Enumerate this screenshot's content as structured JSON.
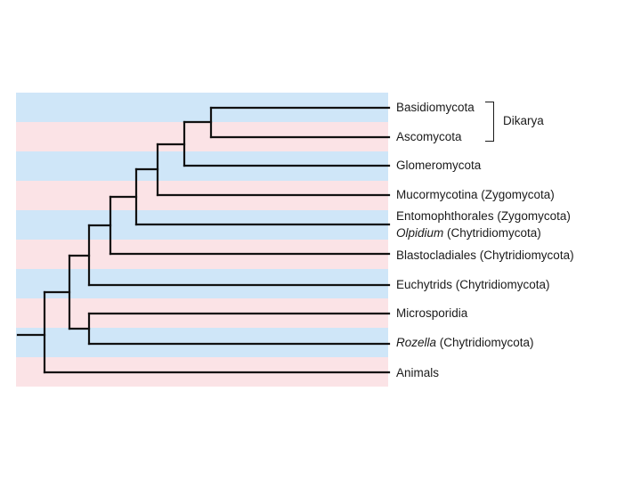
{
  "colors": {
    "band_blue": "#cfe6f8",
    "band_pink": "#fbe3e6",
    "line": "#111111"
  },
  "bands": [
    "blue",
    "pink",
    "blue",
    "pink",
    "blue",
    "pink",
    "blue",
    "pink",
    "blue",
    "pink"
  ],
  "taxa": [
    {
      "name": "Basidiomycota",
      "italic": "",
      "rest": "Basidiomycota"
    },
    {
      "name": "Ascomycota",
      "italic": "",
      "rest": "Ascomycota"
    },
    {
      "name": "Glomeromycota",
      "italic": "",
      "rest": "Glomeromycota"
    },
    {
      "name": "Mucormycotina (Zygomycota)",
      "italic": "",
      "rest": "Mucormycotina (Zygomycota)"
    },
    {
      "name": "Entomophthorales (Zygomycota)",
      "italic": "",
      "rest": "Entomophthorales (Zygomycota)"
    },
    {
      "name": "Olpidium (Chytridiomycota)",
      "italic": "Olpidium",
      "rest": " (Chytridiomycota)"
    },
    {
      "name": "Blastocladiales (Chytridiomycota)",
      "italic": "",
      "rest": "Blastocladiales (Chytridiomycota)"
    },
    {
      "name": "Euchytrids (Chytridiomycota)",
      "italic": "",
      "rest": "Euchytrids (Chytridiomycota)"
    },
    {
      "name": "Microsporidia",
      "italic": "",
      "rest": "Microsporidia"
    },
    {
      "name": "Rozella (Chytridiomycota)",
      "italic": "Rozella",
      "rest": " (Chytridiomycota)"
    },
    {
      "name": "Animals",
      "italic": "",
      "rest": "Animals"
    }
  ],
  "group": {
    "label": "Dikarya"
  }
}
